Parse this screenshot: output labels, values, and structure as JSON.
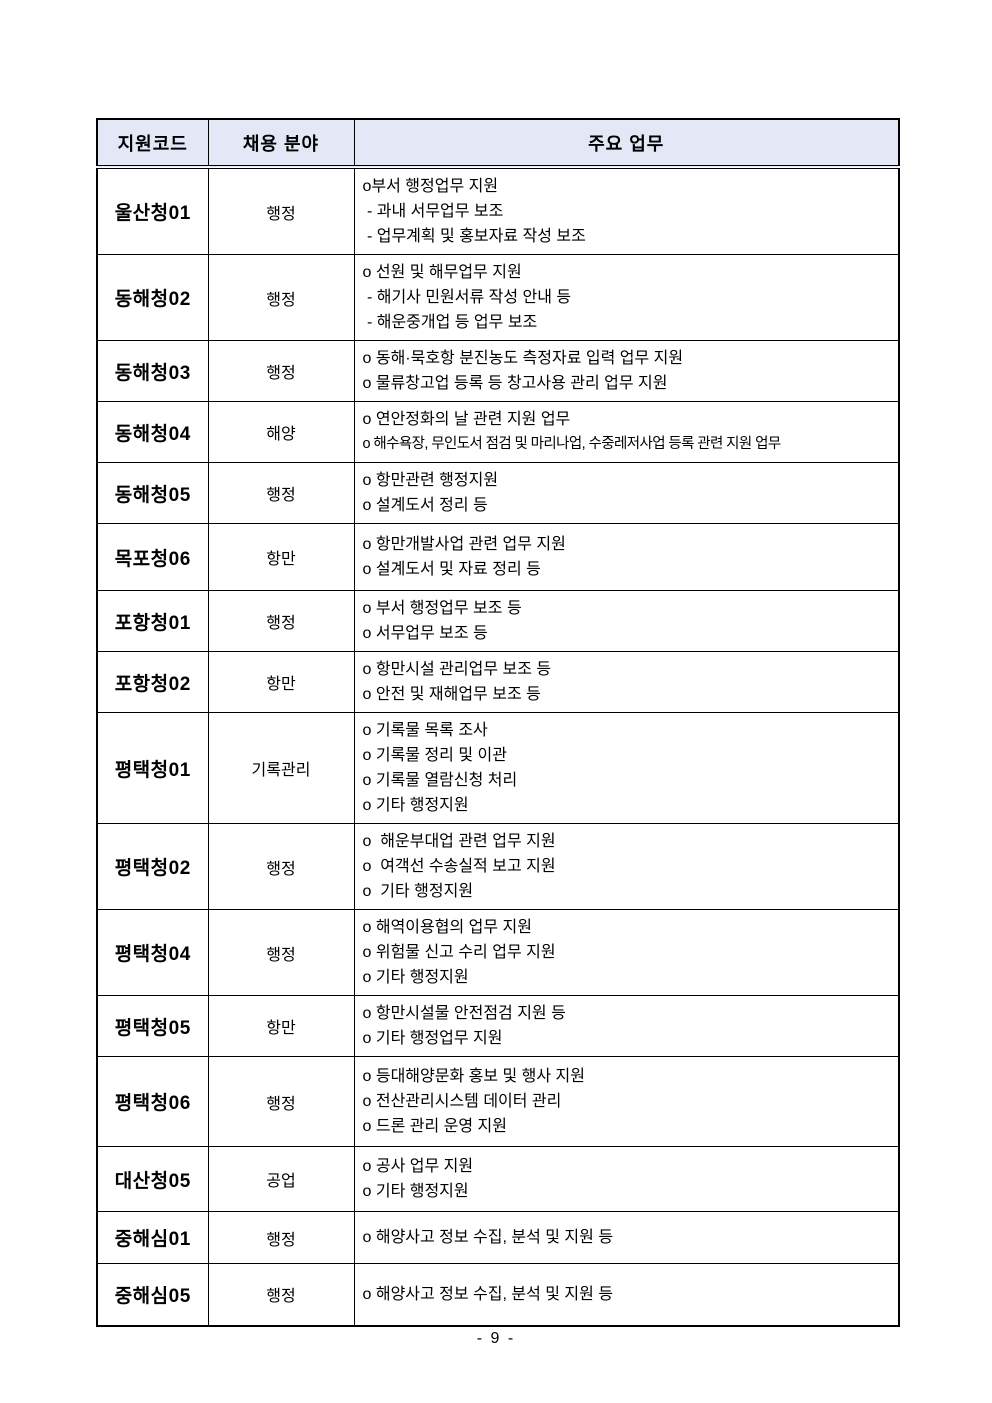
{
  "page": {
    "number_label": "- 9 -"
  },
  "table": {
    "columns": [
      "지원코드",
      "채용 분야",
      "주요 업무"
    ],
    "rows": [
      {
        "code": "울산청01",
        "field": "행정",
        "duties": [
          "o부서 행정업무 지원",
          " - 과내 서무업무 보조",
          " - 업무계획 및 홍보자료 작성 보조"
        ]
      },
      {
        "code": "동해청02",
        "field": "행정",
        "duties": [
          "o 선원 및 해무업무 지원",
          " - 해기사 민원서류 작성 안내 등",
          " - 해운중개업 등 업무 보조"
        ]
      },
      {
        "code": "동해청03",
        "field": "행정",
        "duties": [
          "o 동해·묵호항 분진농도 측정자료 입력 업무 지원",
          "o 물류창고업 등록 등 창고사용 관리 업무 지원"
        ]
      },
      {
        "code": "동해청04",
        "field": "해양",
        "duties": [
          "o 연안정화의 날 관련 지원 업무",
          "o 해수욕장, 무인도서 점검 및 마리나업, 수중레저사업 등록 관련 지원 업무"
        ]
      },
      {
        "code": "동해청05",
        "field": "행정",
        "duties": [
          "o 항만관련 행정지원",
          "o 설계도서 정리 등"
        ]
      },
      {
        "code": "목포청06",
        "field": "항만",
        "duties": [
          "o 항만개발사업 관련 업무 지원",
          "o 설계도서 및 자료 정리 등"
        ]
      },
      {
        "code": "포항청01",
        "field": "행정",
        "duties": [
          "o 부서 행정업무 보조 등",
          "o 서무업무 보조 등"
        ]
      },
      {
        "code": "포항청02",
        "field": "항만",
        "duties": [
          "o 항만시설 관리업무 보조 등",
          "o 안전 및 재해업무 보조 등"
        ]
      },
      {
        "code": "평택청01",
        "field": "기록관리",
        "duties": [
          "o 기록물 목록 조사",
          "o 기록물 정리 및 이관",
          "o 기록물 열람신청 처리",
          "o 기타 행정지원"
        ]
      },
      {
        "code": "평택청02",
        "field": "행정",
        "duties": [
          "o  해운부대업 관련 업무 지원",
          "o  여객선 수송실적 보고 지원",
          "o  기타 행정지원"
        ]
      },
      {
        "code": "평택청04",
        "field": "행정",
        "duties": [
          "o 해역이용협의 업무 지원",
          "o 위험물 신고 수리 업무 지원",
          "o 기타 행정지원"
        ]
      },
      {
        "code": "평택청05",
        "field": "항만",
        "duties": [
          "o 항만시설물 안전점검 지원 등",
          "o 기타 행정업무 지원"
        ]
      },
      {
        "code": "평택청06",
        "field": "행정",
        "duties": [
          "o 등대해양문화 홍보 및 행사 지원",
          "o 전산관리시스템 데이터 관리",
          "o 드론 관리 운영 지원"
        ]
      },
      {
        "code": "대산청05",
        "field": "공업",
        "duties": [
          "o 공사 업무 지원",
          "o 기타 행정지원"
        ]
      },
      {
        "code": "중해심01",
        "field": "행정",
        "duties": [
          "o 해양사고 정보 수집, 분석 및 지원 등"
        ]
      },
      {
        "code": "중해심05",
        "field": "행정",
        "duties": [
          "o 해양사고 정보 수집, 분석 및 지원 등"
        ]
      }
    ]
  }
}
